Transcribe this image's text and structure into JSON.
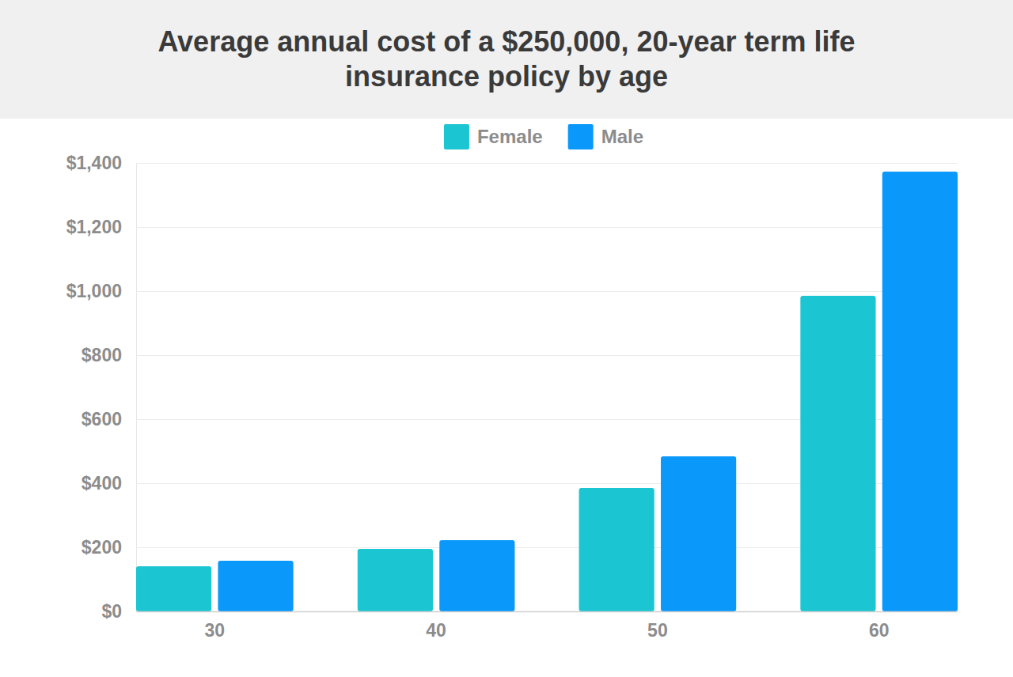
{
  "chart_data": {
    "type": "bar",
    "title": "Average annual cost of a $250,000, 20-year term life insurance policy by age",
    "categories": [
      "30",
      "40",
      "50",
      "60"
    ],
    "series": [
      {
        "name": "Female",
        "color": "#1bc6d2",
        "values": [
          141,
          195,
          385,
          985
        ]
      },
      {
        "name": "Male",
        "color": "#0a98fa",
        "values": [
          158,
          222,
          484,
          1373
        ]
      }
    ],
    "ylim": [
      0,
      1400
    ],
    "yticks": [
      {
        "value": 0,
        "label": "$0"
      },
      {
        "value": 200,
        "label": "$200"
      },
      {
        "value": 400,
        "label": "$400"
      },
      {
        "value": 600,
        "label": "$600"
      },
      {
        "value": 800,
        "label": "$800"
      },
      {
        "value": 1000,
        "label": "$1,000"
      },
      {
        "value": 1200,
        "label": "$1,200"
      },
      {
        "value": 1400,
        "label": "$1,400"
      }
    ],
    "grid": true,
    "legend": "top"
  }
}
